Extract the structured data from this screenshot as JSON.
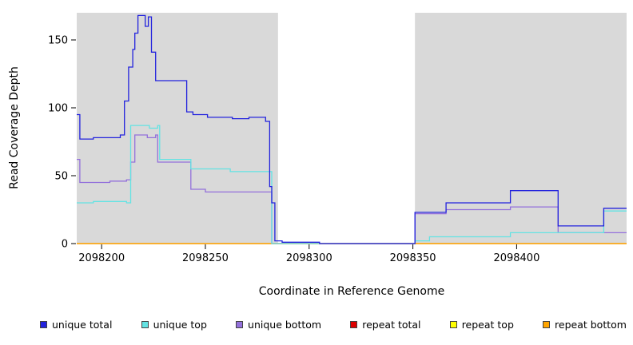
{
  "chart_data": {
    "type": "line",
    "step": true,
    "title": "",
    "xlabel": "Coordinate in Reference Genome",
    "ylabel": "Read Coverage Depth",
    "xlim": [
      2098188,
      2098453
    ],
    "ylim": [
      0,
      170
    ],
    "x_ticks": [
      2098200,
      2098250,
      2098300,
      2098350,
      2098400
    ],
    "y_ticks": [
      0,
      50,
      100,
      150
    ],
    "grid": false,
    "legend_position": "bottom",
    "plot_bg": "#d9d9d9",
    "figure_bg": "#ffffff",
    "gap_region": {
      "x0": 2098285,
      "x1": 2098351,
      "color": "#ffffff"
    },
    "draw_order": [
      3,
      4,
      5,
      2,
      1,
      0
    ],
    "series": [
      {
        "name": "unique total",
        "color": "#2222dd",
        "points": [
          [
            2098188,
            95
          ],
          [
            2098189.5,
            77
          ],
          [
            2098196,
            78
          ],
          [
            2098209,
            80
          ],
          [
            2098211,
            105
          ],
          [
            2098213,
            130
          ],
          [
            2098215,
            143
          ],
          [
            2098216,
            155
          ],
          [
            2098217.5,
            168
          ],
          [
            2098221,
            160
          ],
          [
            2098222.5,
            167
          ],
          [
            2098224,
            141
          ],
          [
            2098226,
            120
          ],
          [
            2098241,
            97
          ],
          [
            2098244,
            95
          ],
          [
            2098251,
            93
          ],
          [
            2098263,
            92
          ],
          [
            2098271,
            93
          ],
          [
            2098279,
            90
          ],
          [
            2098281,
            42
          ],
          [
            2098282,
            30
          ],
          [
            2098283.5,
            2
          ],
          [
            2098287,
            1
          ],
          [
            2098305,
            0
          ],
          [
            2098351,
            23
          ],
          [
            2098366,
            30
          ],
          [
            2098397,
            39
          ],
          [
            2098420,
            13
          ],
          [
            2098442,
            26
          ]
        ]
      },
      {
        "name": "unique top",
        "color": "#63e3e3",
        "points": [
          [
            2098188,
            30
          ],
          [
            2098196,
            31
          ],
          [
            2098212,
            30
          ],
          [
            2098214,
            87
          ],
          [
            2098223,
            85
          ],
          [
            2098227,
            87
          ],
          [
            2098228,
            62
          ],
          [
            2098241,
            62
          ],
          [
            2098243,
            55
          ],
          [
            2098262,
            53
          ],
          [
            2098280,
            53
          ],
          [
            2098282,
            0
          ],
          [
            2098351,
            2
          ],
          [
            2098358,
            5
          ],
          [
            2098397,
            8
          ],
          [
            2098420,
            8
          ],
          [
            2098442,
            24
          ]
        ]
      },
      {
        "name": "unique bottom",
        "color": "#9370db",
        "points": [
          [
            2098188,
            62
          ],
          [
            2098189.5,
            45
          ],
          [
            2098204,
            46
          ],
          [
            2098212,
            47
          ],
          [
            2098214,
            60
          ],
          [
            2098216,
            80
          ],
          [
            2098222,
            78
          ],
          [
            2098226,
            80
          ],
          [
            2098227,
            60
          ],
          [
            2098241,
            60
          ],
          [
            2098243,
            40
          ],
          [
            2098250,
            38
          ],
          [
            2098280,
            38
          ],
          [
            2098282,
            0
          ],
          [
            2098351,
            22
          ],
          [
            2098366,
            25
          ],
          [
            2098397,
            27
          ],
          [
            2098420,
            8
          ],
          [
            2098442,
            8
          ]
        ]
      },
      {
        "name": "repeat total",
        "color": "#dd0000",
        "points": [
          [
            2098188,
            0
          ]
        ]
      },
      {
        "name": "repeat top",
        "color": "#ffff00",
        "points": [
          [
            2098188,
            0
          ]
        ]
      },
      {
        "name": "repeat bottom",
        "color": "#ffa500",
        "points": [
          [
            2098188,
            0
          ]
        ]
      }
    ]
  }
}
